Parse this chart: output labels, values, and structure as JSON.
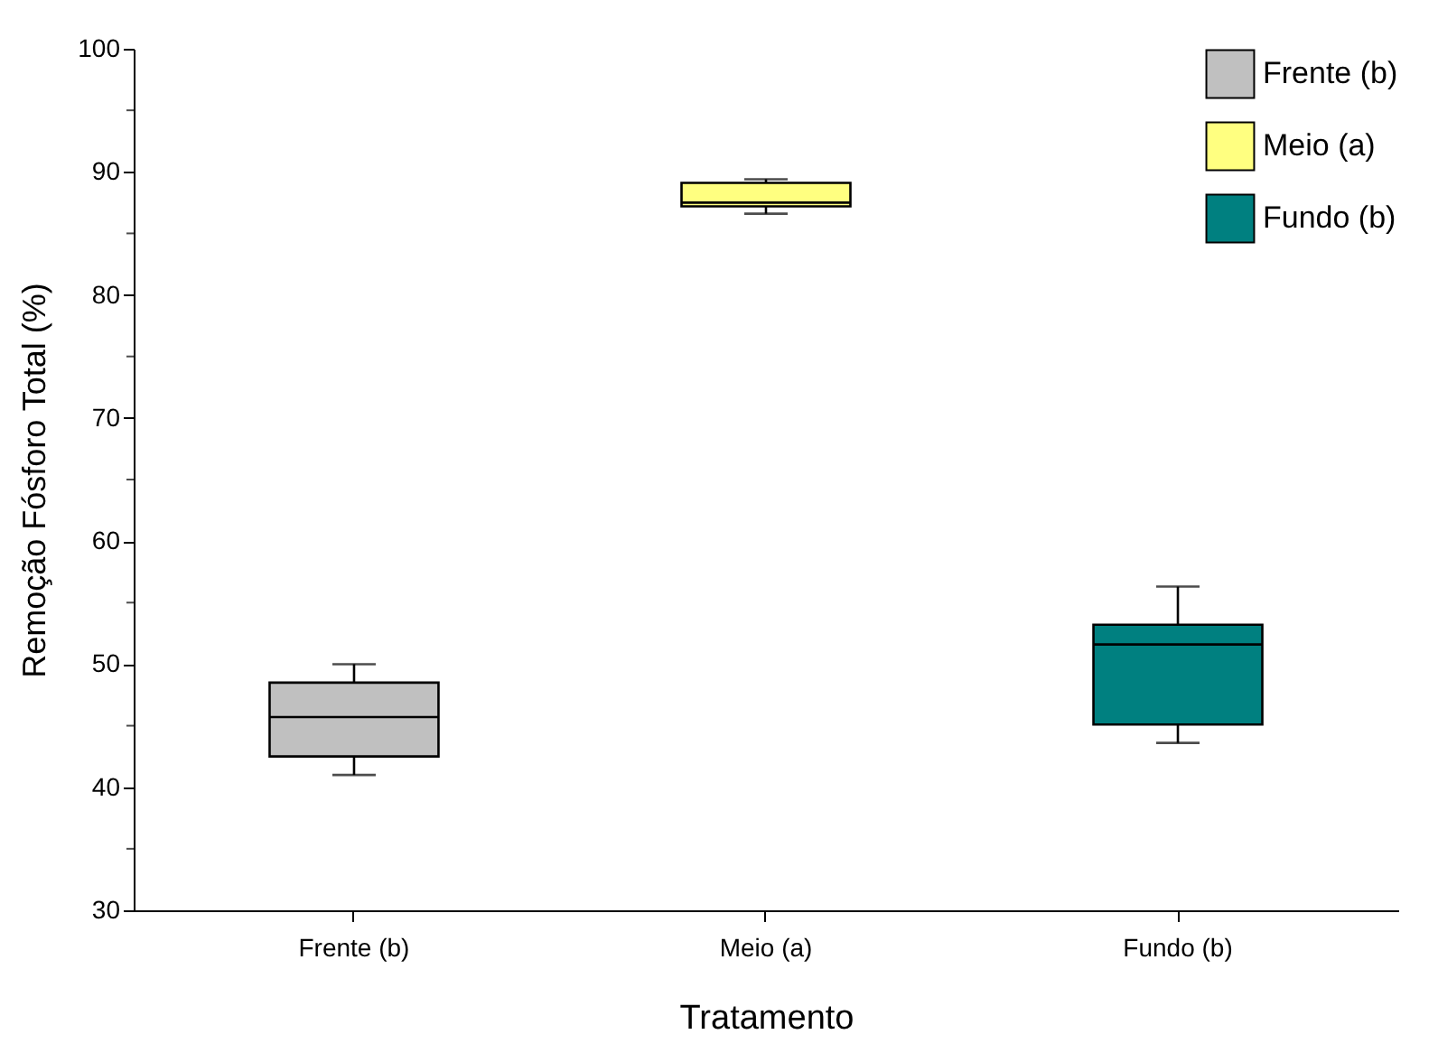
{
  "chart_data": {
    "type": "box",
    "xlabel": "Tratamento",
    "ylabel": "Remoção Fósforo Total (%)",
    "categories": [
      "Frente (b)",
      "Meio (a)",
      "Fundo (b)"
    ],
    "ylim": [
      30,
      100
    ],
    "yticks": [
      30,
      {
        "value": 35,
        "label": null
      },
      40,
      {
        "value": 45,
        "label": null
      },
      50,
      {
        "value": 55,
        "label": null
      },
      60,
      {
        "value": 65,
        "label": null
      },
      70,
      {
        "value": 75,
        "label": null
      },
      80,
      {
        "value": 85,
        "label": null
      },
      90,
      {
        "value": 95,
        "label": null
      },
      100
    ],
    "legend": "top right",
    "grid": false,
    "series": [
      {
        "name": "Frente (b)",
        "color": "#c0c0c0",
        "boxes": [
          {
            "low": 41.0,
            "q1": 42.5,
            "median": 45.7,
            "q3": 48.5,
            "high": 50.0
          },
          null,
          null
        ]
      },
      {
        "name": "Meio (a)",
        "color": "#ffff80",
        "boxes": [
          null,
          {
            "low": 86.6,
            "q1": 87.2,
            "median": 87.5,
            "q3": 89.1,
            "high": 89.4
          },
          null
        ]
      },
      {
        "name": "Fundo (b)",
        "color": "#008080",
        "boxes": [
          null,
          null,
          {
            "low": 43.6,
            "q1": 45.1,
            "median": 51.6,
            "q3": 53.2,
            "high": 56.3
          }
        ]
      }
    ]
  }
}
